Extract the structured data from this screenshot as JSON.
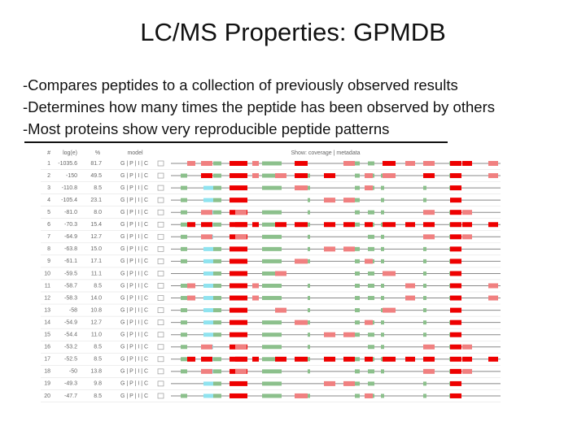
{
  "title": "LC/MS Properties: GPMDB",
  "bullets": [
    "-Compares peptides to  a collection of previously observed results",
    "-Determines how many times the peptide has been observed by others",
    "-Most proteins show very reproducible peptide patterns"
  ],
  "table": {
    "header": [
      "#",
      "log(e)",
      "%",
      "model",
      "Show: coverage | metadata"
    ],
    "rows": [
      [
        "1",
        "-1035.6",
        "81.7",
        "G | P | I | C"
      ],
      [
        "2",
        "-150",
        "49.5",
        "G | P | I | C"
      ],
      [
        "3",
        "-110.8",
        "8.5",
        "G | P | I | C"
      ],
      [
        "4",
        "-105.4",
        "23.1",
        "G | P | I | C"
      ],
      [
        "5",
        "-81.0",
        "8.0",
        "G | P | I | C"
      ],
      [
        "6",
        "-70.3",
        "15.4",
        "G | P | I | C"
      ],
      [
        "7",
        "-64.9",
        "12.7",
        "G | P | I | C"
      ],
      [
        "8",
        "-63.8",
        "15.0",
        "G | P | I | C"
      ],
      [
        "9",
        "-61.1",
        "17.1",
        "G | P | I | C"
      ],
      [
        "10",
        "-59.5",
        "11.1",
        "G | P | I | C"
      ],
      [
        "11",
        "-58.7",
        "8.5",
        "G | P | I | C"
      ],
      [
        "12",
        "-58.3",
        "14.0",
        "G | P | I | C"
      ],
      [
        "13",
        "-58",
        "10.8",
        "G | P | I | C"
      ],
      [
        "14",
        "-54.9",
        "12.7",
        "G | P | I | C"
      ],
      [
        "15",
        "-54.4",
        "11.0",
        "G | P | I | C"
      ],
      [
        "16",
        "-53.2",
        "8.5",
        "G | P | I | C"
      ],
      [
        "17",
        "-52.5",
        "8.5",
        "G | P | I | C"
      ],
      [
        "18",
        "-50",
        "13.8",
        "G | P | I | C"
      ],
      [
        "19",
        "-49.3",
        "9.8",
        "G | P | I | C"
      ],
      [
        "20",
        "-47.7",
        "8.5",
        "G | P | I | C"
      ]
    ]
  }
}
